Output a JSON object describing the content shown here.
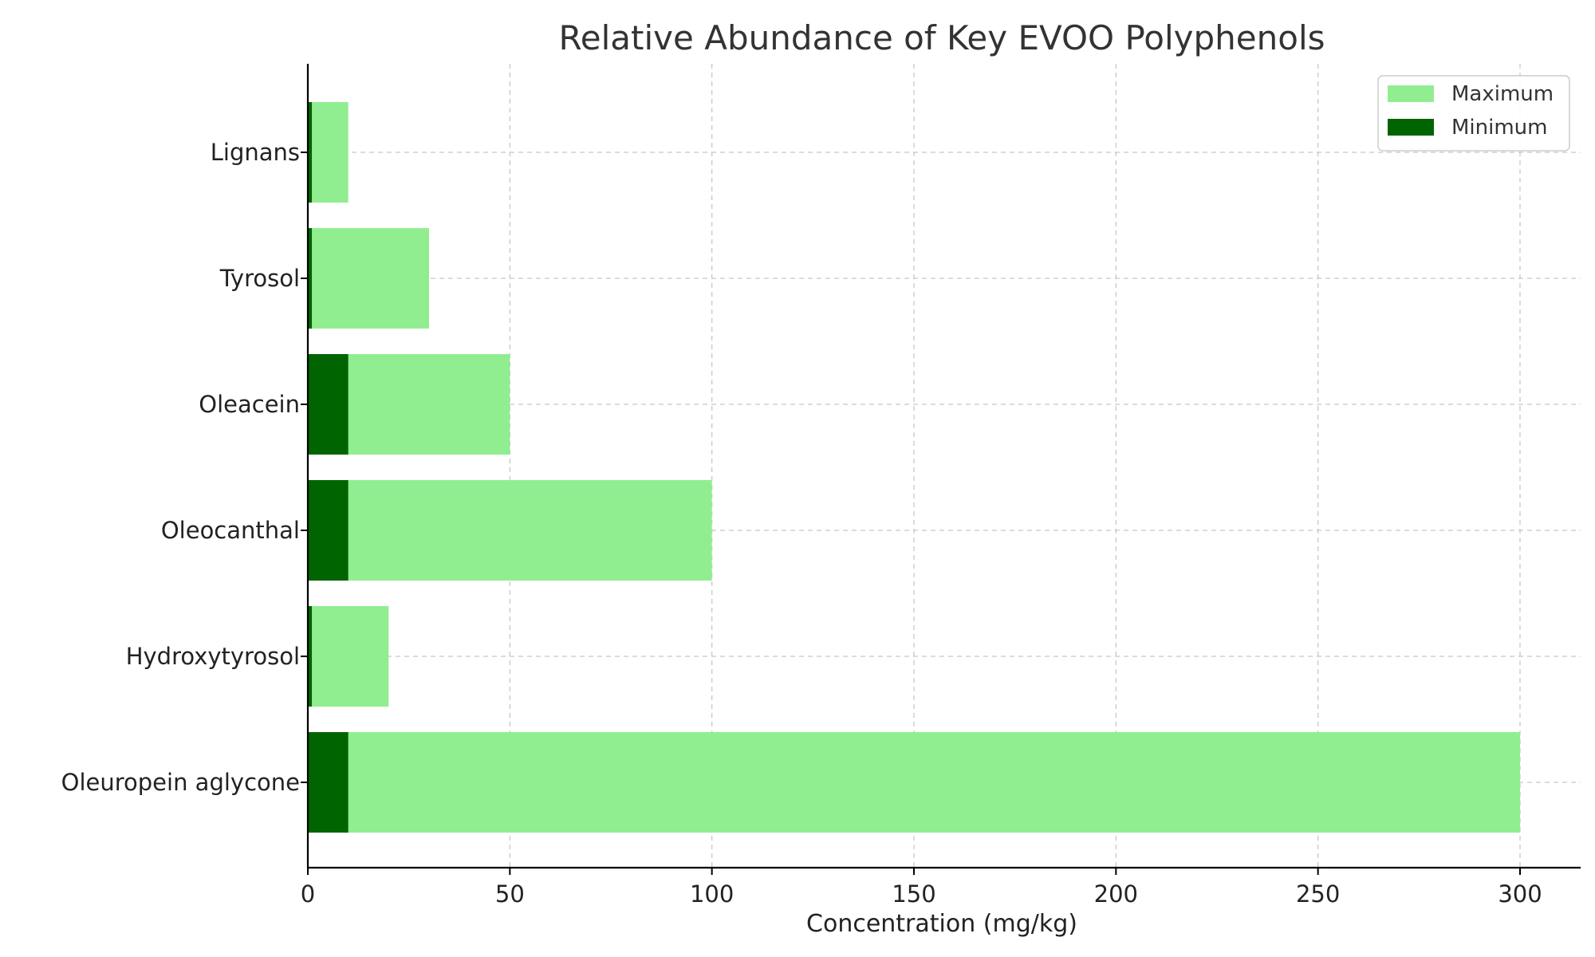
{
  "chart_data": {
    "type": "bar",
    "orientation": "horizontal",
    "stacked": false,
    "title": "Relative Abundance of Key EVOO Polyphenols",
    "xlabel": "Concentration (mg/kg)",
    "ylabel": "",
    "xlim": [
      0,
      315
    ],
    "xticks": [
      0,
      50,
      100,
      150,
      200,
      250,
      300
    ],
    "categories": [
      "Oleuropein aglycone",
      "Hydroxytyrosol",
      "Oleocanthal",
      "Oleacein",
      "Tyrosol",
      "Lignans"
    ],
    "series": [
      {
        "name": "Maximum",
        "color": "#90ee90",
        "values": [
          300,
          20,
          100,
          50,
          30,
          10
        ]
      },
      {
        "name": "Minimum",
        "color": "#006400",
        "values": [
          10,
          1,
          10,
          10,
          1,
          1
        ]
      }
    ],
    "grid": true,
    "legend": {
      "position": "top-right",
      "entries": [
        "Maximum",
        "Minimum"
      ]
    }
  }
}
